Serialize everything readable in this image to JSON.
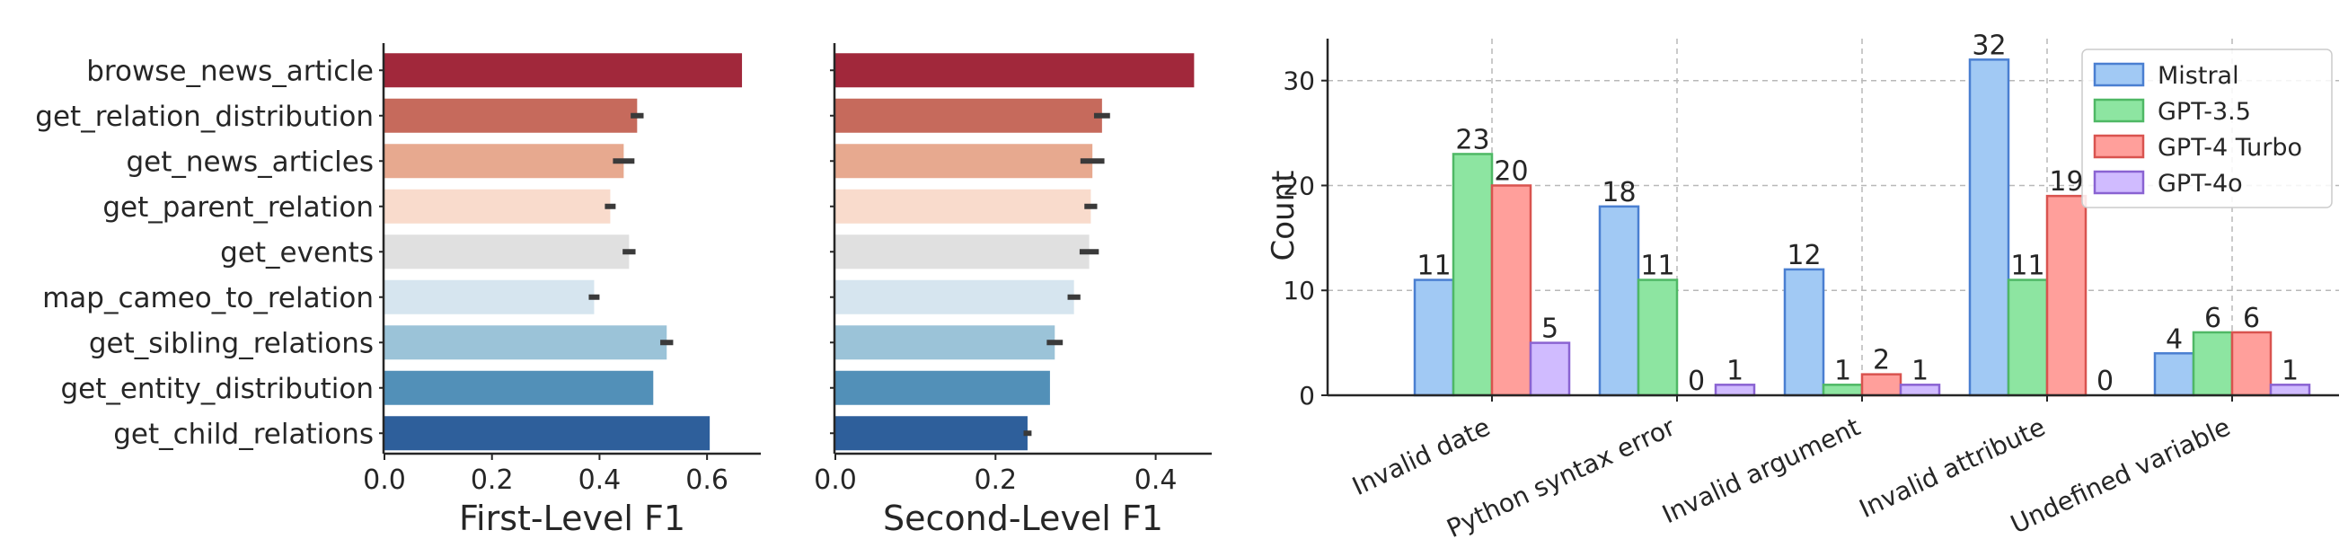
{
  "chart_data": [
    {
      "type": "bar",
      "orientation": "horizontal",
      "xlabel": "First-Level F1",
      "ylabel": "",
      "xlim": [
        0,
        0.7
      ],
      "xticks": [
        "0.0",
        "0.2",
        "0.4",
        "0.6"
      ],
      "categories": [
        "browse_news_article",
        "get_relation_distribution",
        "get_news_articles",
        "get_parent_relation",
        "get_events",
        "map_cameo_to_relation",
        "get_sibling_relations",
        "get_entity_distribution",
        "get_child_relations"
      ],
      "values": [
        0.665,
        0.47,
        0.445,
        0.42,
        0.455,
        0.39,
        0.525,
        0.5,
        0.605
      ],
      "error": [
        0,
        0.012,
        0.02,
        0.01,
        0.012,
        0.01,
        0.012,
        0,
        0
      ],
      "colors": [
        "#a1283b",
        "#c66a5c",
        "#e7a98f",
        "#f9dbcc",
        "#e0e0e0",
        "#d6e5ef",
        "#9bc3d8",
        "#5290b8",
        "#2e5f9b"
      ],
      "grid": false
    },
    {
      "type": "bar",
      "orientation": "horizontal",
      "xlabel": "Second-Level F1",
      "ylabel": "",
      "xlim": [
        0,
        0.47
      ],
      "xticks": [
        "0.0",
        "0.2",
        "0.4"
      ],
      "categories": [
        "browse_news_article",
        "get_relation_distribution",
        "get_news_articles",
        "get_parent_relation",
        "get_events",
        "map_cameo_to_relation",
        "get_sibling_relations",
        "get_entity_distribution",
        "get_child_relations"
      ],
      "values": [
        0.448,
        0.333,
        0.321,
        0.319,
        0.317,
        0.298,
        0.274,
        0.268,
        0.24
      ],
      "error": [
        0,
        0.01,
        0.015,
        0.008,
        0.012,
        0.008,
        0.01,
        0,
        0.005
      ],
      "colors": [
        "#a1283b",
        "#c66a5c",
        "#e7a98f",
        "#f9dbcc",
        "#e0e0e0",
        "#d6e5ef",
        "#9bc3d8",
        "#5290b8",
        "#2e5f9b"
      ],
      "grid": false
    },
    {
      "type": "bar",
      "orientation": "vertical",
      "ylabel": "Count",
      "xlabel": "",
      "ylim": [
        0,
        34
      ],
      "yticks": [
        "0",
        "10",
        "20",
        "30"
      ],
      "grid": true,
      "legend_position": "top-right",
      "categories": [
        "Invalid date",
        "Python syntax error",
        "Invalid argument",
        "Invalid attribute",
        "Undefined variable"
      ],
      "series": [
        {
          "name": "Mistral",
          "values": [
            11,
            18,
            12,
            32,
            4
          ],
          "color": "#a1c9f4",
          "edge": "#4a7fd1"
        },
        {
          "name": "GPT-3.5",
          "values": [
            23,
            11,
            1,
            11,
            6
          ],
          "color": "#8de5a1",
          "edge": "#4fb865"
        },
        {
          "name": "GPT-4 Turbo",
          "values": [
            20,
            0,
            2,
            19,
            6
          ],
          "color": "#ff9f9b",
          "edge": "#d9534f"
        },
        {
          "name": "GPT-4o",
          "values": [
            5,
            1,
            1,
            0,
            1
          ],
          "color": "#d0bbff",
          "edge": "#8a63d2"
        }
      ]
    }
  ]
}
